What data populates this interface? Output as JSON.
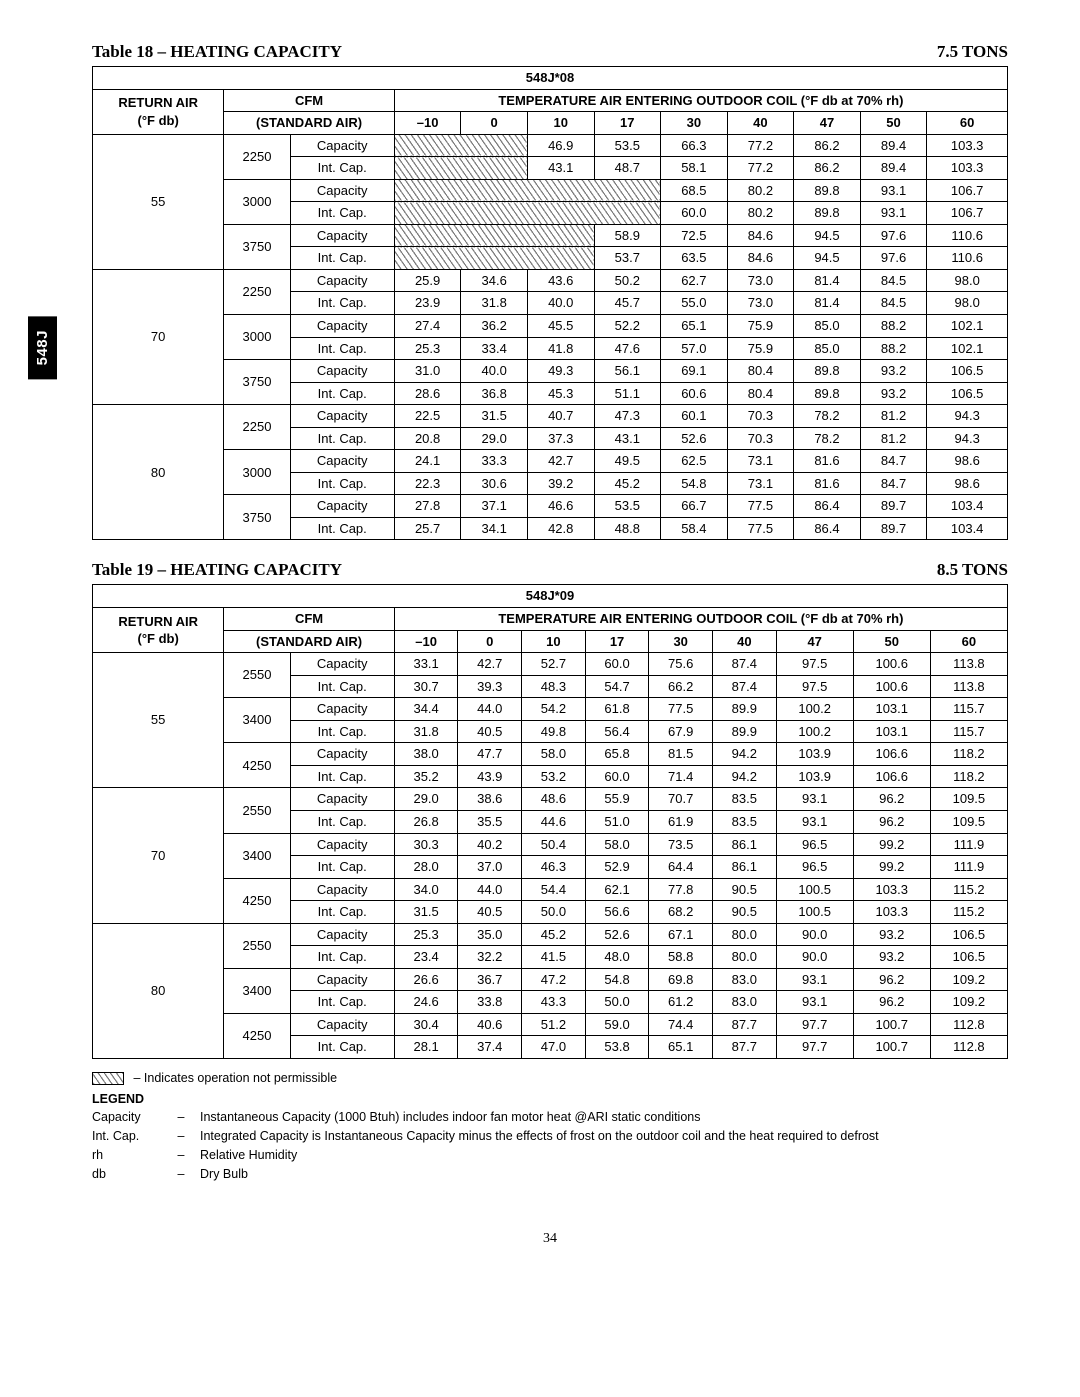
{
  "sideTab": "548J",
  "tables": [
    {
      "titleLeft": "Table 18 – HEATING CAPACITY",
      "titleRight": "7.5 TONS",
      "model": "548J*08",
      "h1a": "RETURN AIR",
      "h1b": "(°F db)",
      "h2a": "CFM",
      "h2b": "(STANDARD AIR)",
      "tempHeader": "TEMPERATURE AIR ENTERING OUTDOOR COIL (°F db at 70% rh)",
      "tempCols": [
        "–10",
        "0",
        "10",
        "17",
        "30",
        "40",
        "47",
        "50",
        "60"
      ],
      "rowTypeLabels": [
        "Capacity",
        "Int. Cap."
      ],
      "groups": [
        {
          "return": "55",
          "cfms": [
            {
              "cfm": "2250",
              "rows": [
                {
                  "hatch": 2,
                  "vals": [
                    null,
                    null,
                    "46.9",
                    "53.5",
                    "66.3",
                    "77.2",
                    "86.2",
                    "89.4",
                    "103.3"
                  ]
                },
                {
                  "hatch": 2,
                  "vals": [
                    null,
                    null,
                    "43.1",
                    "48.7",
                    "58.1",
                    "77.2",
                    "86.2",
                    "89.4",
                    "103.3"
                  ]
                }
              ]
            },
            {
              "cfm": "3000",
              "rows": [
                {
                  "hatch": 4,
                  "vals": [
                    null,
                    null,
                    null,
                    null,
                    "68.5",
                    "80.2",
                    "89.8",
                    "93.1",
                    "106.7"
                  ]
                },
                {
                  "hatch": 4,
                  "vals": [
                    null,
                    null,
                    null,
                    null,
                    "60.0",
                    "80.2",
                    "89.8",
                    "93.1",
                    "106.7"
                  ]
                }
              ]
            },
            {
              "cfm": "3750",
              "rows": [
                {
                  "hatch": 3,
                  "vals": [
                    null,
                    null,
                    null,
                    "58.9",
                    "72.5",
                    "84.6",
                    "94.5",
                    "97.6",
                    "110.6"
                  ]
                },
                {
                  "hatch": 3,
                  "vals": [
                    null,
                    null,
                    null,
                    "53.7",
                    "63.5",
                    "84.6",
                    "94.5",
                    "97.6",
                    "110.6"
                  ]
                }
              ]
            }
          ]
        },
        {
          "return": "70",
          "cfms": [
            {
              "cfm": "2250",
              "rows": [
                {
                  "hatch": 0,
                  "vals": [
                    "25.9",
                    "34.6",
                    "43.6",
                    "50.2",
                    "62.7",
                    "73.0",
                    "81.4",
                    "84.5",
                    "98.0"
                  ]
                },
                {
                  "hatch": 0,
                  "vals": [
                    "23.9",
                    "31.8",
                    "40.0",
                    "45.7",
                    "55.0",
                    "73.0",
                    "81.4",
                    "84.5",
                    "98.0"
                  ]
                }
              ]
            },
            {
              "cfm": "3000",
              "rows": [
                {
                  "hatch": 0,
                  "vals": [
                    "27.4",
                    "36.2",
                    "45.5",
                    "52.2",
                    "65.1",
                    "75.9",
                    "85.0",
                    "88.2",
                    "102.1"
                  ]
                },
                {
                  "hatch": 0,
                  "vals": [
                    "25.3",
                    "33.4",
                    "41.8",
                    "47.6",
                    "57.0",
                    "75.9",
                    "85.0",
                    "88.2",
                    "102.1"
                  ]
                }
              ]
            },
            {
              "cfm": "3750",
              "rows": [
                {
                  "hatch": 0,
                  "vals": [
                    "31.0",
                    "40.0",
                    "49.3",
                    "56.1",
                    "69.1",
                    "80.4",
                    "89.8",
                    "93.2",
                    "106.5"
                  ]
                },
                {
                  "hatch": 0,
                  "vals": [
                    "28.6",
                    "36.8",
                    "45.3",
                    "51.1",
                    "60.6",
                    "80.4",
                    "89.8",
                    "93.2",
                    "106.5"
                  ]
                }
              ]
            }
          ]
        },
        {
          "return": "80",
          "cfms": [
            {
              "cfm": "2250",
              "rows": [
                {
                  "hatch": 0,
                  "vals": [
                    "22.5",
                    "31.5",
                    "40.7",
                    "47.3",
                    "60.1",
                    "70.3",
                    "78.2",
                    "81.2",
                    "94.3"
                  ]
                },
                {
                  "hatch": 0,
                  "vals": [
                    "20.8",
                    "29.0",
                    "37.3",
                    "43.1",
                    "52.6",
                    "70.3",
                    "78.2",
                    "81.2",
                    "94.3"
                  ]
                }
              ]
            },
            {
              "cfm": "3000",
              "rows": [
                {
                  "hatch": 0,
                  "vals": [
                    "24.1",
                    "33.3",
                    "42.7",
                    "49.5",
                    "62.5",
                    "73.1",
                    "81.6",
                    "84.7",
                    "98.6"
                  ]
                },
                {
                  "hatch": 0,
                  "vals": [
                    "22.3",
                    "30.6",
                    "39.2",
                    "45.2",
                    "54.8",
                    "73.1",
                    "81.6",
                    "84.7",
                    "98.6"
                  ]
                }
              ]
            },
            {
              "cfm": "3750",
              "rows": [
                {
                  "hatch": 0,
                  "vals": [
                    "27.8",
                    "37.1",
                    "46.6",
                    "53.5",
                    "66.7",
                    "77.5",
                    "86.4",
                    "89.7",
                    "103.4"
                  ]
                },
                {
                  "hatch": 0,
                  "vals": [
                    "25.7",
                    "34.1",
                    "42.8",
                    "48.8",
                    "58.4",
                    "77.5",
                    "86.4",
                    "89.7",
                    "103.4"
                  ]
                }
              ]
            }
          ]
        }
      ]
    },
    {
      "titleLeft": "Table 19 – HEATING CAPACITY",
      "titleRight": "8.5 TONS",
      "model": "548J*09",
      "h1a": "RETURN AIR",
      "h1b": "(°F db)",
      "h2a": "CFM",
      "h2b": "(STANDARD AIR)",
      "tempHeader": "TEMPERATURE AIR ENTERING OUTDOOR COIL (°F db at 70% rh)",
      "tempCols": [
        "–10",
        "0",
        "10",
        "17",
        "30",
        "40",
        "47",
        "50",
        "60"
      ],
      "rowTypeLabels": [
        "Capacity",
        "Int. Cap."
      ],
      "groups": [
        {
          "return": "55",
          "cfms": [
            {
              "cfm": "2550",
              "rows": [
                {
                  "hatch": 0,
                  "vals": [
                    "33.1",
                    "42.7",
                    "52.7",
                    "60.0",
                    "75.6",
                    "87.4",
                    "97.5",
                    "100.6",
                    "113.8"
                  ]
                },
                {
                  "hatch": 0,
                  "vals": [
                    "30.7",
                    "39.3",
                    "48.3",
                    "54.7",
                    "66.2",
                    "87.4",
                    "97.5",
                    "100.6",
                    "113.8"
                  ]
                }
              ]
            },
            {
              "cfm": "3400",
              "rows": [
                {
                  "hatch": 0,
                  "vals": [
                    "34.4",
                    "44.0",
                    "54.2",
                    "61.8",
                    "77.5",
                    "89.9",
                    "100.2",
                    "103.1",
                    "115.7"
                  ]
                },
                {
                  "hatch": 0,
                  "vals": [
                    "31.8",
                    "40.5",
                    "49.8",
                    "56.4",
                    "67.9",
                    "89.9",
                    "100.2",
                    "103.1",
                    "115.7"
                  ]
                }
              ]
            },
            {
              "cfm": "4250",
              "rows": [
                {
                  "hatch": 0,
                  "vals": [
                    "38.0",
                    "47.7",
                    "58.0",
                    "65.8",
                    "81.5",
                    "94.2",
                    "103.9",
                    "106.6",
                    "118.2"
                  ]
                },
                {
                  "hatch": 0,
                  "vals": [
                    "35.2",
                    "43.9",
                    "53.2",
                    "60.0",
                    "71.4",
                    "94.2",
                    "103.9",
                    "106.6",
                    "118.2"
                  ]
                }
              ]
            }
          ]
        },
        {
          "return": "70",
          "cfms": [
            {
              "cfm": "2550",
              "rows": [
                {
                  "hatch": 0,
                  "vals": [
                    "29.0",
                    "38.6",
                    "48.6",
                    "55.9",
                    "70.7",
                    "83.5",
                    "93.1",
                    "96.2",
                    "109.5"
                  ]
                },
                {
                  "hatch": 0,
                  "vals": [
                    "26.8",
                    "35.5",
                    "44.6",
                    "51.0",
                    "61.9",
                    "83.5",
                    "93.1",
                    "96.2",
                    "109.5"
                  ]
                }
              ]
            },
            {
              "cfm": "3400",
              "rows": [
                {
                  "hatch": 0,
                  "vals": [
                    "30.3",
                    "40.2",
                    "50.4",
                    "58.0",
                    "73.5",
                    "86.1",
                    "96.5",
                    "99.2",
                    "111.9"
                  ]
                },
                {
                  "hatch": 0,
                  "vals": [
                    "28.0",
                    "37.0",
                    "46.3",
                    "52.9",
                    "64.4",
                    "86.1",
                    "96.5",
                    "99.2",
                    "111.9"
                  ]
                }
              ]
            },
            {
              "cfm": "4250",
              "rows": [
                {
                  "hatch": 0,
                  "vals": [
                    "34.0",
                    "44.0",
                    "54.4",
                    "62.1",
                    "77.8",
                    "90.5",
                    "100.5",
                    "103.3",
                    "115.2"
                  ]
                },
                {
                  "hatch": 0,
                  "vals": [
                    "31.5",
                    "40.5",
                    "50.0",
                    "56.6",
                    "68.2",
                    "90.5",
                    "100.5",
                    "103.3",
                    "115.2"
                  ]
                }
              ]
            }
          ]
        },
        {
          "return": "80",
          "cfms": [
            {
              "cfm": "2550",
              "rows": [
                {
                  "hatch": 0,
                  "vals": [
                    "25.3",
                    "35.0",
                    "45.2",
                    "52.6",
                    "67.1",
                    "80.0",
                    "90.0",
                    "93.2",
                    "106.5"
                  ]
                },
                {
                  "hatch": 0,
                  "vals": [
                    "23.4",
                    "32.2",
                    "41.5",
                    "48.0",
                    "58.8",
                    "80.0",
                    "90.0",
                    "93.2",
                    "106.5"
                  ]
                }
              ]
            },
            {
              "cfm": "3400",
              "rows": [
                {
                  "hatch": 0,
                  "vals": [
                    "26.6",
                    "36.7",
                    "47.2",
                    "54.8",
                    "69.8",
                    "83.0",
                    "93.1",
                    "96.2",
                    "109.2"
                  ]
                },
                {
                  "hatch": 0,
                  "vals": [
                    "24.6",
                    "33.8",
                    "43.3",
                    "50.0",
                    "61.2",
                    "83.0",
                    "93.1",
                    "96.2",
                    "109.2"
                  ]
                }
              ]
            },
            {
              "cfm": "4250",
              "rows": [
                {
                  "hatch": 0,
                  "vals": [
                    "30.4",
                    "40.6",
                    "51.2",
                    "59.0",
                    "74.4",
                    "87.7",
                    "97.7",
                    "100.7",
                    "112.8"
                  ]
                },
                {
                  "hatch": 0,
                  "vals": [
                    "28.1",
                    "37.4",
                    "47.0",
                    "53.8",
                    "65.1",
                    "87.7",
                    "97.7",
                    "100.7",
                    "112.8"
                  ]
                }
              ]
            }
          ]
        }
      ]
    }
  ],
  "notes": {
    "hatchNote": "– Indicates operation not permissible",
    "legendLabel": "LEGEND",
    "items": [
      {
        "k": "Capacity",
        "d": "–",
        "v": "Instantaneous Capacity (1000 Btuh) includes indoor fan motor heat @ARI static conditions"
      },
      {
        "k": "Int. Cap.",
        "d": "–",
        "v": "Integrated Capacity is Instantaneous Capacity minus the effects of frost on the outdoor coil and the heat required to defrost"
      },
      {
        "k": "rh",
        "d": "–",
        "v": "Relative Humidity"
      },
      {
        "k": "db",
        "d": "–",
        "v": "Dry Bulb"
      }
    ]
  },
  "pageNumber": "34"
}
